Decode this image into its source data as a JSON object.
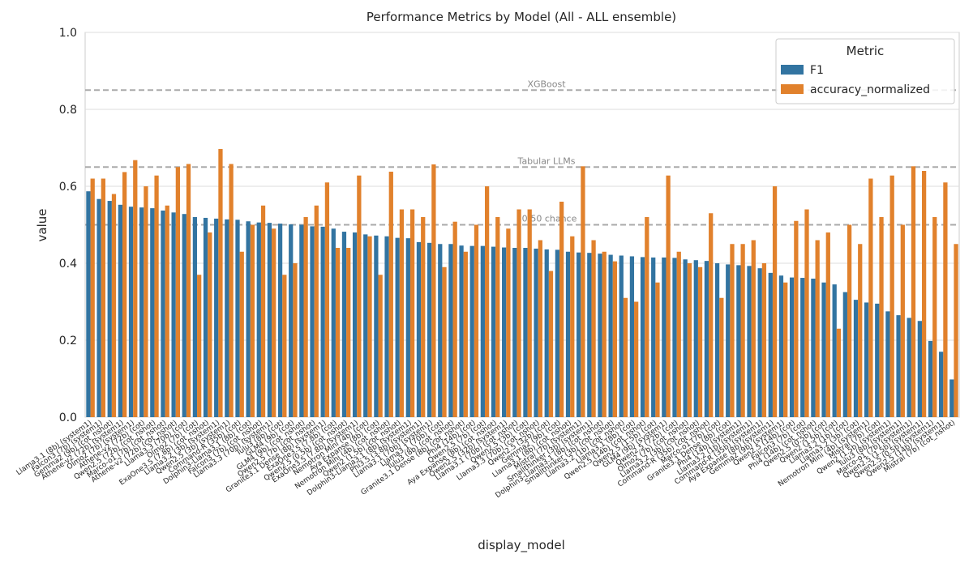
{
  "chart_data": {
    "type": "bar",
    "title": "Performance Metrics by Model (All - ALL ensemble)",
    "x_label": "display_model",
    "y_label": "value",
    "legend_title": "Metric",
    "legend_position": "upper right",
    "grid": true,
    "ylim": [
      0,
      1
    ],
    "yticks": [
      {
        "value": 0,
        "label": "0.0"
      },
      {
        "value": 0.2,
        "label": "0.2"
      },
      {
        "value": 0.4,
        "label": "0.4"
      },
      {
        "value": 0.6,
        "label": "0.6"
      },
      {
        "value": 0.8,
        "label": "0.8"
      },
      {
        "value": 1,
        "label": "1.0"
      }
    ],
    "reference_lines": [
      {
        "value": 0.85,
        "label": "XGBoost"
      },
      {
        "value": 0.65,
        "label": "Tabular LLMs"
      },
      {
        "value": 0.5,
        "label": "50/50 chance"
      }
    ],
    "categories": [
      "Llama3.1 (8b) (system1)",
      "Falcon3 (7b) (system1)",
      "Gemma2 (9b) (cot_nshot)",
      "Athene-v2 (72b) (system1)",
      "Olmo2 (7b) (system1)",
      "Athene-v2 (72b) (cot)",
      "Qwen2.5 (72b) (cot_nshot)",
      "Marco-o1 (7b) (cot_nshot)",
      "Athene-v2 (72b) (cot_nshot)",
      "Llama3.3 (70b) (cot)",
      "Olmo2 (7b) (cot)",
      "ExaOne3.5 (7.8b) (cot_nshot)",
      "Llama3.2 (3b) (system1)",
      "Qwen2.5 (3b) (system1)",
      "Command-R (35b) (cot)",
      "Dolphin3-Llama3.1 (8b) (cot)",
      "Falcon3 (7b) (cot_nshot)",
      "Llama3.3 (70b) (system1)",
      "Tulu3 (8b) (cot)",
      "GLM4 (9b) (cot)",
      "GLM4 (9b) (cot_nshot)",
      "Qwen2.5 (7b) (cot_nshot)",
      "Granite3.1 Dense (8b) (system1)",
      "ExaOne3.5 (7.8b) (cot)",
      "Qwen2.5 (0.5b) (cot_nshot)",
      "ExaOne3.5 (7.8b) (system1)",
      "Nemotron Mini (4b) (cot)",
      "Aya Expanse (8b) (cot)",
      "Nemotron Mini (4b) (cot_nshot)",
      "Qwen2 (1.5b) (cot_nshot)",
      "Dolphin3-Llama3.1 (8b) (system1)",
      "Phi3.5 (3.8b) (system1)",
      "Llama3.1 (70b) (system1)",
      "Llama3.1 (70b) (cot)",
      "Tulu3 (8b) (cot_nshot)",
      "Granite3.1 Dense (8b) (cot_nshot)",
      "Phi4 (14b) (cot)",
      "Qwen2.5 (7b) (cot)",
      "Aya Expanse (8b) (cot_nshot)",
      "Qwen2.5 (32b) (system1)",
      "Llama3.1 (70b) (cot_nshot)",
      "Qwen2.5 (3b) (cot)",
      "Llama3.3 (70b) (cot_nshot)",
      "Qwen2.5 (32b) (cot)",
      "Gemma2 (9b) (cot)",
      "Llama3.1 (8b) (cot_nshot)",
      "Mistral (7b) (system1)",
      "Smallthinker (3b) (system1)",
      "Dolphin3-Llama3.1 (8b) (cot_nshot)",
      "Smallthinker (3b) (cot_nshot)",
      "Llama3.2 (1b) (cot_nshot)",
      "Llama3.1 (8b) (cot)",
      "Qwen2.5 (14b) (cot_nshot)",
      "Qwen2.5 (1.5b) (cot)",
      "GLM4 (9b) (system1)",
      "Qwen2.5 (72b) (cot)",
      "Olmo2 (7b) (cot_nshot)",
      "Llama3.2 (3b) (cot_nshot)",
      "Command-R (35b) (cot_nshot)",
      "Marco-o1 (7b) (cot)",
      "Granite3.1 Dense (8b) (cot)",
      "Phi4 (14b) (system1)",
      "Llama3.2 (1b) (system1)",
      "Command-R (35b) (system1)",
      "Aya Expanse (8b) (system1)",
      "Gemma2 (9b) (system1)",
      "Qwen2.5 (14b) (cot)",
      "Falcon3 (7b) (cot)",
      "Phi4 (14b) (cot_nshot)",
      "Qwen2.5 (0.5b) (cot)",
      "Qwen2 (1.5b) (cot)",
      "Llama3.2 (1b) (cot)",
      "Llama3.2 (3b) (cot)",
      "Nemotron Mini (4b) (system1)",
      "Mistral (7b) (cot)",
      "Qwen2 (1.5b) (system1)",
      "Tulu3 (8b) (system1)",
      "Marco-o1 (7b) (system1)",
      "Qwen2.5 (1.5b) (system1)",
      "Qwen2.5 (0.5b) (system1)",
      "Qwen2.5 (14b) (system1)",
      "Mistral (7b) (cot_nshot)"
    ],
    "series": [
      {
        "name": "F1",
        "color": "#3274a1",
        "values": [
          0.587,
          0.567,
          0.562,
          0.552,
          0.547,
          0.545,
          0.543,
          0.537,
          0.532,
          0.528,
          0.52,
          0.518,
          0.516,
          0.514,
          0.513,
          0.509,
          0.506,
          0.505,
          0.503,
          0.501,
          0.5,
          0.496,
          0.495,
          0.49,
          0.482,
          0.48,
          0.475,
          0.472,
          0.47,
          0.466,
          0.465,
          0.455,
          0.453,
          0.45,
          0.45,
          0.446,
          0.445,
          0.445,
          0.443,
          0.441,
          0.44,
          0.44,
          0.438,
          0.436,
          0.435,
          0.43,
          0.428,
          0.427,
          0.425,
          0.422,
          0.42,
          0.418,
          0.416,
          0.415,
          0.415,
          0.414,
          0.41,
          0.408,
          0.406,
          0.4,
          0.397,
          0.395,
          0.393,
          0.387,
          0.375,
          0.368,
          0.363,
          0.362,
          0.36,
          0.35,
          0.345,
          0.325,
          0.305,
          0.298,
          0.295,
          0.275,
          0.265,
          0.258,
          0.25,
          0.198,
          0.17,
          0.098
        ]
      },
      {
        "name": "accuracy_normalized",
        "color": "#e1812c",
        "values": [
          0.62,
          0.62,
          0.58,
          0.637,
          0.668,
          0.6,
          0.628,
          0.55,
          0.65,
          0.658,
          0.37,
          0.48,
          0.697,
          0.658,
          0.43,
          0.5,
          0.55,
          0.49,
          0.37,
          0.4,
          0.52,
          0.55,
          0.61,
          0.44,
          0.44,
          0.628,
          0.47,
          0.37,
          0.638,
          0.54,
          0.54,
          0.52,
          0.657,
          0.39,
          0.508,
          0.43,
          0.5,
          0.6,
          0.52,
          0.49,
          0.54,
          0.54,
          0.46,
          0.38,
          0.56,
          0.47,
          0.652,
          0.46,
          0.43,
          0.405,
          0.31,
          0.3,
          0.52,
          0.35,
          0.628,
          0.43,
          0.4,
          0.39,
          0.53,
          0.31,
          0.45,
          0.45,
          0.46,
          0.4,
          0.6,
          0.35,
          0.51,
          0.54,
          0.46,
          0.48,
          0.23,
          0.5,
          0.45,
          0.62,
          0.52,
          0.628,
          0.5,
          0.652,
          0.64,
          0.52,
          0.61,
          0.45
        ]
      }
    ]
  }
}
